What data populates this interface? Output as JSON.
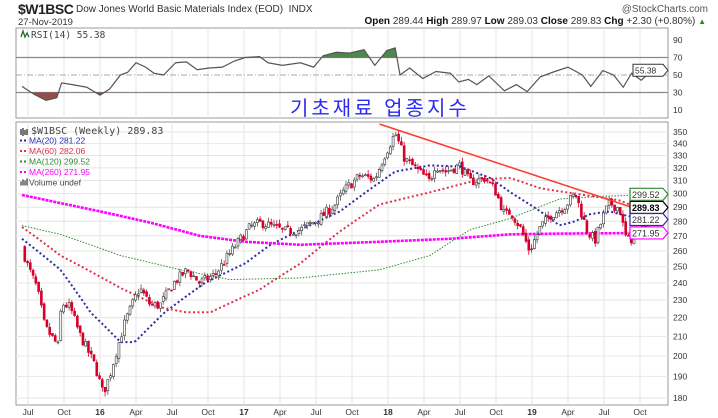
{
  "header": {
    "symbol": "$W1BSC",
    "name": "Dow Jones World Basic Materials Index (EOD)",
    "exchange": "INDX",
    "brand": "@StockCharts.com",
    "date": "27-Nov-2019",
    "open_label": "Open",
    "open": "289.44",
    "high_label": "High",
    "high": "289.97",
    "low_label": "Low",
    "low": "289.03",
    "close_label": "Close",
    "close": "289.83",
    "chg_label": "Chg",
    "chg": "+2.30 (+0.80%)",
    "chg_icon": "triangle-up-icon"
  },
  "annotation": "기초재료 업종지수",
  "colors": {
    "up": "#000000",
    "down": "#d4002a",
    "ma20": "#2a2aa8",
    "ma60": "#e0304a",
    "ma120": "#2f8a2f",
    "ma260": "#ff00ff",
    "trend": "#ff3b30",
    "rsi": "#555555",
    "overbought": "#3d7a3d",
    "oversold": "#8b3a3a"
  },
  "chart_data": [
    {
      "type": "line",
      "title": "RSI(14) 55.38",
      "legend": "RSI(14) 55.38",
      "last_value": "55.38",
      "yticks": [
        "90",
        "70",
        "50",
        "30",
        "10"
      ],
      "ytick_values": [
        90,
        70,
        50,
        30,
        10
      ],
      "ylim": [
        0,
        100
      ],
      "levels": [
        70,
        50,
        30
      ],
      "x_unit": "months since Jul 2015",
      "points": [
        [
          -0.5,
          37
        ],
        [
          0.5,
          28
        ],
        [
          1.5,
          21
        ],
        [
          2.4,
          24
        ],
        [
          2.8,
          41
        ],
        [
          3.7,
          39
        ],
        [
          4.9,
          36
        ],
        [
          6.0,
          27
        ],
        [
          6.8,
          34
        ],
        [
          7.7,
          50
        ],
        [
          8.3,
          53
        ],
        [
          9.0,
          64
        ],
        [
          9.8,
          59
        ],
        [
          10.5,
          52
        ],
        [
          11.3,
          50
        ],
        [
          12.3,
          64
        ],
        [
          13.2,
          65
        ],
        [
          14.1,
          56
        ],
        [
          15.1,
          58
        ],
        [
          16.2,
          59
        ],
        [
          17.2,
          66
        ],
        [
          18.1,
          70
        ],
        [
          19.3,
          71
        ],
        [
          20.0,
          64
        ],
        [
          21.2,
          61
        ],
        [
          22.7,
          64
        ],
        [
          23.8,
          59
        ],
        [
          24.6,
          72
        ],
        [
          25.7,
          76
        ],
        [
          26.8,
          75
        ],
        [
          28.0,
          79
        ],
        [
          28.9,
          61
        ],
        [
          29.9,
          78
        ],
        [
          30.6,
          81
        ],
        [
          31.0,
          50
        ],
        [
          31.8,
          58
        ],
        [
          32.9,
          46
        ],
        [
          34.0,
          54
        ],
        [
          35.2,
          52
        ],
        [
          35.9,
          42
        ],
        [
          36.7,
          45
        ],
        [
          37.4,
          39
        ],
        [
          38.4,
          49
        ],
        [
          39.7,
          32
        ],
        [
          40.7,
          39
        ],
        [
          41.6,
          31
        ],
        [
          42.7,
          48
        ],
        [
          43.9,
          54
        ],
        [
          45.0,
          59
        ],
        [
          46.2,
          50
        ],
        [
          46.9,
          37
        ],
        [
          47.9,
          55
        ],
        [
          48.8,
          50
        ],
        [
          49.6,
          36
        ],
        [
          50.3,
          52
        ],
        [
          51.1,
          44
        ],
        [
          52.2,
          58
        ],
        [
          52.9,
          55.38
        ]
      ]
    },
    {
      "type": "candlestick",
      "title": "$W1BSC (Weekly) 289.83",
      "scale": "log",
      "ylim": [
        178,
        360
      ],
      "yticks": [
        "350",
        "340",
        "330",
        "320",
        "310",
        "300",
        "290",
        "280",
        "270",
        "260",
        "250",
        "240",
        "230",
        "220",
        "210",
        "200",
        "190",
        "180"
      ],
      "ytick_values": [
        350,
        340,
        330,
        320,
        310,
        300,
        290,
        280,
        270,
        260,
        250,
        240,
        230,
        220,
        210,
        200,
        190,
        180
      ],
      "xticks": [
        {
          "m": 0,
          "label": "Jul"
        },
        {
          "m": 3,
          "label": "Oct"
        },
        {
          "m": 6,
          "label": "16",
          "bold": true
        },
        {
          "m": 9,
          "label": "Apr"
        },
        {
          "m": 12,
          "label": "Jul"
        },
        {
          "m": 15,
          "label": "Oct"
        },
        {
          "m": 18,
          "label": "17",
          "bold": true
        },
        {
          "m": 21,
          "label": "Apr"
        },
        {
          "m": 24,
          "label": "Jul"
        },
        {
          "m": 27,
          "label": "Oct"
        },
        {
          "m": 30,
          "label": "18",
          "bold": true
        },
        {
          "m": 33,
          "label": "Apr"
        },
        {
          "m": 36,
          "label": "Jul"
        },
        {
          "m": 39,
          "label": "Oct"
        },
        {
          "m": 42,
          "label": "19",
          "bold": true
        },
        {
          "m": 45,
          "label": "Apr"
        },
        {
          "m": 48,
          "label": "Jul"
        },
        {
          "m": 51,
          "label": "Oct"
        }
      ],
      "x_unit": "months since Jul 2015",
      "close_path": [
        [
          -0.5,
          262
        ],
        [
          0,
          250
        ],
        [
          0.75,
          237
        ],
        [
          1.4,
          215
        ],
        [
          2.5,
          205
        ],
        [
          2.8,
          228
        ],
        [
          3.5,
          226
        ],
        [
          4.3,
          211
        ],
        [
          5.6,
          195
        ],
        [
          6.25,
          182
        ],
        [
          6.8,
          190
        ],
        [
          8.1,
          218
        ],
        [
          9.3,
          237
        ],
        [
          10.2,
          227
        ],
        [
          11,
          227
        ],
        [
          12.25,
          241
        ],
        [
          13.3,
          248
        ],
        [
          14.3,
          240
        ],
        [
          15.6,
          245
        ],
        [
          17.25,
          263
        ],
        [
          18.5,
          276
        ],
        [
          19.5,
          279
        ],
        [
          21.4,
          273
        ],
        [
          22.7,
          274
        ],
        [
          24.3,
          282
        ],
        [
          25.6,
          292
        ],
        [
          26.4,
          303
        ],
        [
          27.7,
          314
        ],
        [
          28.9,
          311
        ],
        [
          29.75,
          331
        ],
        [
          30.6,
          349
        ],
        [
          31.4,
          327
        ],
        [
          32.25,
          320
        ],
        [
          33.5,
          309
        ],
        [
          33.9,
          322
        ],
        [
          34.75,
          317
        ],
        [
          36,
          322
        ],
        [
          36.8,
          309
        ],
        [
          38.1,
          312
        ],
        [
          38.9,
          303
        ],
        [
          39.75,
          284
        ],
        [
          40.2,
          287
        ],
        [
          41,
          276
        ],
        [
          41.8,
          260
        ],
        [
          42.7,
          276
        ],
        [
          43.5,
          284
        ],
        [
          44.75,
          291
        ],
        [
          45.6,
          300
        ],
        [
          46.6,
          273
        ],
        [
          47.25,
          267
        ],
        [
          48.1,
          287
        ],
        [
          48.5,
          293
        ],
        [
          49.3,
          289
        ],
        [
          49.75,
          270
        ],
        [
          50.2,
          266
        ],
        [
          50.8,
          284
        ],
        [
          51.4,
          276
        ],
        [
          51.8,
          284
        ],
        [
          52.5,
          291
        ],
        [
          52.9,
          289.83
        ]
      ],
      "legend": [
        {
          "label": "$W1BSC (Weekly) 289.83",
          "icon": "candlestick-icon"
        },
        {
          "label": "MA(20) 281.22",
          "color_key": "ma20"
        },
        {
          "label": "MA(60) 282.06",
          "color_key": "ma60"
        },
        {
          "label": "MA(120) 299.52",
          "color_key": "ma120"
        },
        {
          "label": "MA(260) 271.95",
          "color_key": "ma260"
        },
        {
          "label": "Volume undef",
          "icon": "volume-icon"
        }
      ],
      "series": [
        {
          "name": "MA(20)",
          "last": "281.22",
          "color_key": "ma20",
          "points": [
            [
              -0.5,
              268
            ],
            [
              2.7,
              248
            ],
            [
              5.2,
              223
            ],
            [
              7.7,
              207
            ],
            [
              8.9,
              207
            ],
            [
              11.4,
              223
            ],
            [
              14.75,
              240
            ],
            [
              18.1,
              252
            ],
            [
              20.2,
              264
            ],
            [
              22.7,
              274
            ],
            [
              26,
              287
            ],
            [
              30.6,
              317
            ],
            [
              33.5,
              322
            ],
            [
              36,
              321
            ],
            [
              38.5,
              312
            ],
            [
              40.2,
              301
            ],
            [
              42.7,
              287
            ],
            [
              44.3,
              277
            ],
            [
              45.6,
              280
            ],
            [
              46.8,
              285
            ],
            [
              48.5,
              287
            ],
            [
              49.3,
              285
            ],
            [
              51,
              282
            ],
            [
              52.9,
              281.22
            ]
          ]
        },
        {
          "name": "MA(60)",
          "last": "282.06",
          "color_key": "ma60",
          "points": [
            [
              -0.5,
              276
            ],
            [
              2.7,
              257
            ],
            [
              7.7,
              237
            ],
            [
              11,
              226
            ],
            [
              13.1,
              223
            ],
            [
              15.2,
              223
            ],
            [
              19.3,
              236
            ],
            [
              22.7,
              252
            ],
            [
              26,
              273
            ],
            [
              29.3,
              292
            ],
            [
              33.5,
              301
            ],
            [
              37.7,
              311
            ],
            [
              40.2,
              312
            ],
            [
              42.7,
              304
            ],
            [
              45.6,
              300
            ],
            [
              49.3,
              295
            ],
            [
              52.9,
              282.06
            ]
          ]
        },
        {
          "name": "MA(120)",
          "last": "299.52",
          "color_key": "ma120",
          "points": [
            [
              -0.5,
              277
            ],
            [
              2.7,
              271
            ],
            [
              7.7,
              257
            ],
            [
              12.7,
              248
            ],
            [
              16.8,
              242
            ],
            [
              22.7,
              243
            ],
            [
              29.3,
              248
            ],
            [
              33.5,
              257
            ],
            [
              36.8,
              274
            ],
            [
              40.2,
              282
            ],
            [
              44.3,
              296
            ],
            [
              47.7,
              298
            ],
            [
              52.9,
              299.52
            ]
          ]
        },
        {
          "name": "MA(260)",
          "last": "271.95",
          "color_key": "ma260",
          "points": [
            [
              -0.5,
              299
            ],
            [
              2.7,
              293
            ],
            [
              6,
              287
            ],
            [
              10.2,
              279
            ],
            [
              14.3,
              270
            ],
            [
              18.1,
              266
            ],
            [
              22.7,
              264
            ],
            [
              29.3,
              266
            ],
            [
              35.2,
              268
            ],
            [
              40.2,
              271
            ],
            [
              44.3,
              271.5
            ],
            [
              52.9,
              271.95
            ]
          ]
        }
      ],
      "trendline": [
        [
          29.3,
          357
        ],
        [
          53.3,
          281.5
        ]
      ],
      "value_tags": [
        {
          "label": "299.52",
          "color_key": "ma120",
          "value": 299.52
        },
        {
          "label": "289.83",
          "color_key": "up",
          "value": 289.83,
          "bold": true
        },
        {
          "label": "281.22",
          "color_key": "ma20",
          "value": 281.22
        },
        {
          "label": "271.95",
          "color_key": "ma260",
          "value": 271.95
        }
      ]
    }
  ]
}
